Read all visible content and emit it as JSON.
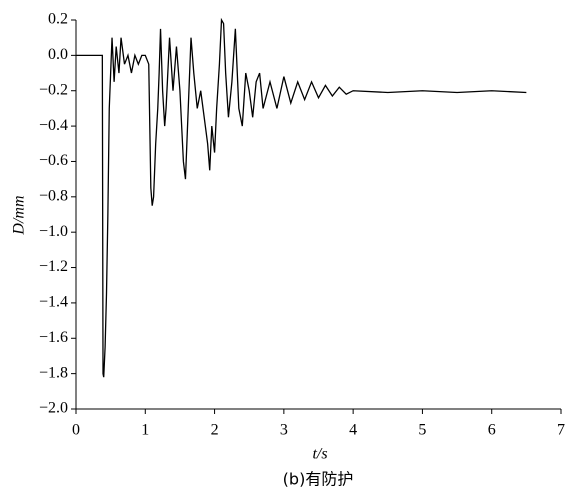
{
  "chart_data": {
    "type": "line",
    "ylabel": "D/mm",
    "xlabel": "t/s",
    "caption": "(b)有防护",
    "color": "#000000",
    "xlim": [
      0,
      7
    ],
    "xticks": [
      0,
      1,
      2,
      3,
      4,
      5,
      6,
      7
    ],
    "ylim": [
      -2.0,
      0.2
    ],
    "yticks": [
      {
        "value": -2.0,
        "label": "−2.0"
      },
      {
        "value": -1.8,
        "label": "−1.8"
      },
      {
        "value": -1.6,
        "label": "−1.6"
      },
      {
        "value": -1.4,
        "label": "−1.4"
      },
      {
        "value": -1.2,
        "label": "−1.2"
      },
      {
        "value": -1.0,
        "label": "−1.0"
      },
      {
        "value": -0.8,
        "label": "−0.8"
      },
      {
        "value": -0.6,
        "label": "−0.6"
      },
      {
        "value": -0.4,
        "label": "−0.4"
      },
      {
        "value": -0.2,
        "label": "−0.2"
      },
      {
        "value": 0.0,
        "label": "0.0"
      },
      0.2
    ],
    "x": [
      0,
      0.38,
      0.39,
      0.4,
      0.42,
      0.44,
      0.46,
      0.48,
      0.5,
      0.52,
      0.55,
      0.58,
      0.62,
      0.65,
      0.7,
      0.75,
      0.8,
      0.85,
      0.9,
      0.95,
      1.0,
      1.05,
      1.08,
      1.1,
      1.12,
      1.15,
      1.18,
      1.2,
      1.22,
      1.25,
      1.28,
      1.3,
      1.35,
      1.4,
      1.45,
      1.5,
      1.55,
      1.58,
      1.62,
      1.66,
      1.7,
      1.75,
      1.8,
      1.85,
      1.9,
      1.93,
      1.96,
      2.0,
      2.03,
      2.07,
      2.1,
      2.13,
      2.16,
      2.2,
      2.25,
      2.3,
      2.35,
      2.4,
      2.45,
      2.5,
      2.55,
      2.6,
      2.65,
      2.7,
      2.8,
      2.9,
      3.0,
      3.1,
      3.2,
      3.3,
      3.4,
      3.5,
      3.6,
      3.7,
      3.8,
      3.9,
      4.0,
      4.5,
      5.0,
      5.5,
      6.0,
      6.5
    ],
    "values": [
      0.0,
      0.0,
      -1.8,
      -1.82,
      -1.65,
      -1.35,
      -0.9,
      -0.3,
      -0.1,
      0.1,
      -0.15,
      0.05,
      -0.1,
      0.1,
      -0.05,
      0.0,
      -0.1,
      0.0,
      -0.05,
      0.0,
      0.0,
      -0.05,
      -0.75,
      -0.85,
      -0.8,
      -0.5,
      -0.3,
      -0.1,
      0.15,
      -0.2,
      -0.4,
      -0.3,
      0.1,
      -0.2,
      0.05,
      -0.2,
      -0.6,
      -0.7,
      -0.3,
      0.1,
      -0.1,
      -0.3,
      -0.2,
      -0.35,
      -0.5,
      -0.65,
      -0.4,
      -0.55,
      -0.3,
      -0.05,
      0.2,
      0.18,
      -0.1,
      -0.35,
      -0.15,
      0.15,
      -0.3,
      -0.4,
      -0.1,
      -0.2,
      -0.35,
      -0.15,
      -0.1,
      -0.3,
      -0.15,
      -0.3,
      -0.12,
      -0.27,
      -0.15,
      -0.25,
      -0.15,
      -0.24,
      -0.17,
      -0.23,
      -0.18,
      -0.22,
      -0.2,
      -0.21,
      -0.2,
      -0.21,
      -0.2,
      -0.21
    ]
  }
}
